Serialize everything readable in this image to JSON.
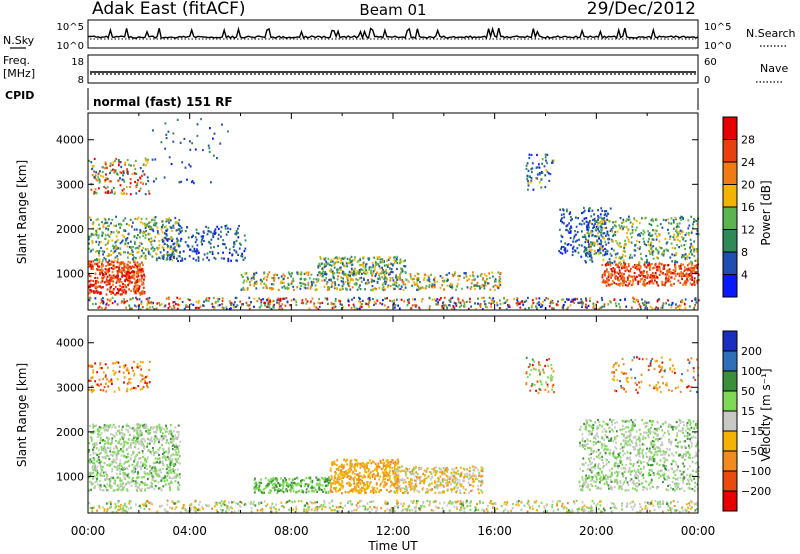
{
  "header": {
    "site": "Adak East (fitACF)",
    "beam": "Beam 01",
    "date": "29/Dec/2012"
  },
  "panels": {
    "sky": {
      "label": "N.Sky",
      "tick_top": "10^5",
      "tick_bottom": "10^0"
    },
    "search": {
      "label": "N.Search",
      "tick_top": "10^5",
      "tick_bottom": "10^0"
    },
    "freq": {
      "label_line1": "Freq.",
      "label_line2": "[MHz]",
      "tick_top": "18",
      "tick_bottom": "8"
    },
    "nave": {
      "label": "Nave",
      "tick_top": "60",
      "tick_bottom": "0"
    },
    "cpid": {
      "label": "CPID",
      "value": "normal (fast) 151 RF"
    }
  },
  "chart_data": [
    {
      "type": "heatmap",
      "name": "power",
      "ylabel": "Slant Range [km]",
      "xlabel": "",
      "xlim_hours": [
        0,
        24
      ],
      "ylim_km": [
        180,
        4600
      ],
      "y_ticks": [
        "1000",
        "2000",
        "3000",
        "4000"
      ],
      "colorbar": {
        "label": "Power [dB]",
        "ticks": [
          "4",
          "8",
          "12",
          "16",
          "20",
          "24",
          "28"
        ],
        "colors": [
          "#0a1aff",
          "#1f4fb0",
          "#2e8b57",
          "#5ab550",
          "#f5b301",
          "#f07b12",
          "#e8400f",
          "#e60000"
        ]
      }
    },
    {
      "type": "heatmap",
      "name": "velocity",
      "ylabel": "Slant Range [km]",
      "xlabel": "Time UT",
      "xlim_hours": [
        0,
        24
      ],
      "ylim_km": [
        180,
        4600
      ],
      "y_ticks": [
        "1000",
        "2000",
        "3000",
        "4000"
      ],
      "x_ticks": [
        "00:00",
        "04:00",
        "08:00",
        "12:00",
        "16:00",
        "20:00",
        "00:00"
      ],
      "colorbar": {
        "label": "Velocity [m s⁻¹]",
        "ticks": [
          "200",
          "100",
          "50",
          "15",
          "−15",
          "−50",
          "−100",
          "−200"
        ],
        "colors": [
          "#1a2fbf",
          "#2e6fb8",
          "#3a8f3a",
          "#7ed957",
          "#c8c8c4",
          "#f5b301",
          "#f28a1e",
          "#e84a10",
          "#e60000"
        ]
      }
    }
  ]
}
